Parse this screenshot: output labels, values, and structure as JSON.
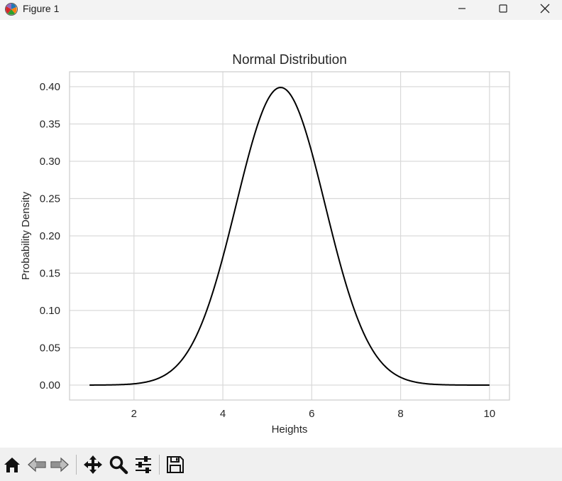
{
  "window": {
    "title": "Figure 1",
    "icon": "matplotlib-logo-icon",
    "controls": [
      "minimize-icon",
      "maximize-icon",
      "close-icon"
    ]
  },
  "toolbar": {
    "tools": [
      {
        "name": "home-button",
        "icon": "home-icon"
      },
      {
        "name": "back-button",
        "icon": "back-arrow-icon"
      },
      {
        "name": "forward-button",
        "icon": "forward-arrow-icon"
      },
      {
        "name": "pan-button",
        "icon": "move-icon"
      },
      {
        "name": "zoom-button",
        "icon": "zoom-icon"
      },
      {
        "name": "configure-subplots-button",
        "icon": "sliders-icon"
      },
      {
        "name": "save-button",
        "icon": "save-icon"
      }
    ]
  },
  "chart_data": {
    "type": "line",
    "title": "Normal Distribution",
    "xlabel": "Heights",
    "ylabel": "Probability Density",
    "xlim": [
      0.55,
      10.45
    ],
    "ylim": [
      -0.02,
      0.42
    ],
    "xticks": [
      2,
      4,
      6,
      8,
      10
    ],
    "xtick_labels": [
      "2",
      "4",
      "6",
      "8",
      "10"
    ],
    "yticks": [
      0.0,
      0.05,
      0.1,
      0.15,
      0.2,
      0.25,
      0.3,
      0.35,
      0.4
    ],
    "ytick_labels": [
      "0.00",
      "0.05",
      "0.10",
      "0.15",
      "0.20",
      "0.25",
      "0.30",
      "0.35",
      "0.40"
    ],
    "grid": true,
    "series": [
      {
        "color": "#000000",
        "distribution": {
          "mean": 5.3,
          "std": 1.0
        },
        "x": [
          1.0,
          1.5,
          2.0,
          2.5,
          3.0,
          3.5,
          4.0,
          4.5,
          5.0,
          5.3,
          5.5,
          6.0,
          6.5,
          7.0,
          7.5,
          8.0,
          8.5,
          9.0,
          9.5,
          10.0
        ],
        "y": [
          0.0,
          0.0003,
          0.0018,
          0.0079,
          0.0283,
          0.079,
          0.1714,
          0.2897,
          0.3814,
          0.3989,
          0.391,
          0.3123,
          0.1942,
          0.094,
          0.0355,
          0.0104,
          0.0024,
          0.0004,
          0.0001,
          0.0
        ]
      }
    ]
  }
}
